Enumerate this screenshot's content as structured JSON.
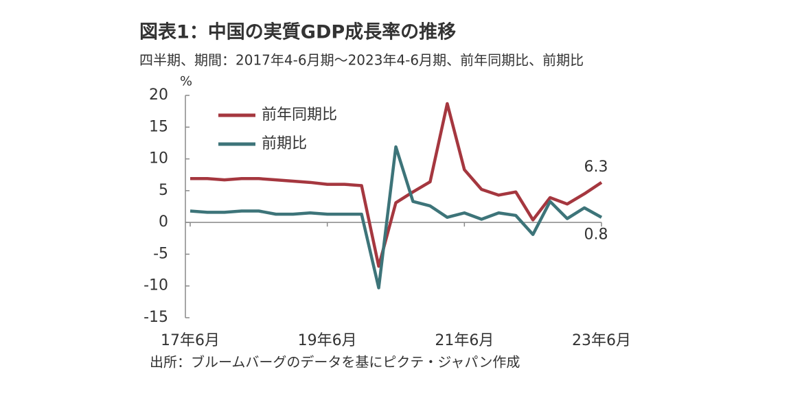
{
  "chart_data": {
    "type": "line",
    "title": "図表1：中国の実質GDP成長率の推移",
    "subtitle": "四半期、期間：2017年4-6月期～2023年4-6月期、前年同期比、前期比",
    "y_unit": "%",
    "source": "出所：ブルームバーグのデータを基にピクテ・ジャパン作成",
    "categories": [
      "17年6月",
      null,
      null,
      null,
      null,
      null,
      null,
      null,
      "19年6月",
      null,
      null,
      null,
      null,
      null,
      null,
      null,
      "21年6月",
      null,
      null,
      null,
      null,
      null,
      null,
      null,
      "23年6月"
    ],
    "series": [
      {
        "name": "前年同期比",
        "color": "#a5373f",
        "values": [
          6.9,
          6.9,
          6.7,
          6.9,
          6.9,
          6.7,
          6.5,
          6.3,
          6.0,
          6.0,
          5.8,
          -6.9,
          3.1,
          4.8,
          6.4,
          18.7,
          8.3,
          5.2,
          4.3,
          4.8,
          0.4,
          3.9,
          2.9,
          4.5,
          6.3
        ]
      },
      {
        "name": "前期比",
        "color": "#3d7479",
        "values": [
          1.8,
          1.6,
          1.6,
          1.8,
          1.8,
          1.3,
          1.3,
          1.5,
          1.3,
          1.3,
          1.3,
          -10.3,
          11.9,
          3.3,
          2.6,
          0.8,
          1.5,
          0.5,
          1.5,
          1.1,
          -1.9,
          3.3,
          0.6,
          2.3,
          0.8
        ]
      }
    ],
    "label_last": true,
    "ylim": [
      -15,
      20
    ],
    "yticks": [
      -15,
      -10,
      -5,
      0,
      5,
      10,
      15,
      20
    ],
    "legend": "upper left"
  }
}
